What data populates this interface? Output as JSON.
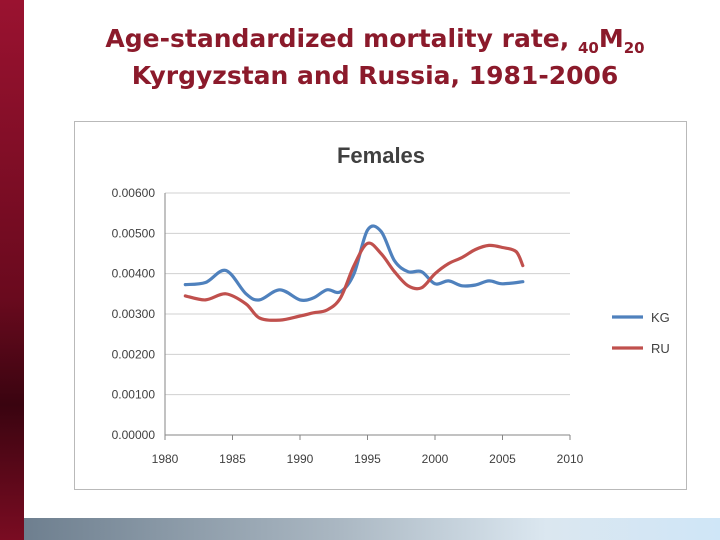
{
  "slide": {
    "title_line1_prefix": "Age-standardized mortality rate, ",
    "title_sub_left": "40",
    "title_m": "M",
    "title_sub_right": "20",
    "title_line2": "Kyrgyzstan and Russia, 1981-2006"
  },
  "colors": {
    "accent": "#8b1a2b",
    "kg": "#4f81bd",
    "ru": "#c0504d"
  },
  "chart_data": {
    "type": "line",
    "title": "Females",
    "xlim": [
      1980,
      2010
    ],
    "ylim": [
      0,
      0.006
    ],
    "x_ticks": [
      1980,
      1985,
      1990,
      1995,
      2000,
      2005,
      2010
    ],
    "y_ticks": [
      "0.00000",
      "0.00100",
      "0.00200",
      "0.00300",
      "0.00400",
      "0.00500",
      "0.00600"
    ],
    "legend_position": "right",
    "grid": true,
    "series": [
      {
        "name": "KG",
        "color": "#4f81bd",
        "x": [
          1981.5,
          1983,
          1984.5,
          1986,
          1987,
          1988.5,
          1990,
          1991,
          1992,
          1993,
          1994,
          1995,
          1996,
          1997,
          1998,
          1999,
          2000,
          2001,
          2002,
          2003,
          2004,
          2005,
          2006.5
        ],
        "y": [
          0.00373,
          0.00378,
          0.00408,
          0.0035,
          0.00335,
          0.0036,
          0.00335,
          0.0034,
          0.0036,
          0.00355,
          0.004,
          0.00508,
          0.00505,
          0.00432,
          0.00405,
          0.00405,
          0.00375,
          0.00382,
          0.0037,
          0.00372,
          0.00382,
          0.00375,
          0.0038
        ]
      },
      {
        "name": "RU",
        "color": "#c0504d",
        "x": [
          1981.5,
          1983,
          1984.5,
          1986,
          1987,
          1988.5,
          1990,
          1991,
          1992,
          1993,
          1994,
          1995,
          1996,
          1997,
          1998,
          1999,
          2000,
          2001,
          2002,
          2003,
          2004,
          2005,
          2006,
          2006.5
        ],
        "y": [
          0.00345,
          0.00335,
          0.0035,
          0.00325,
          0.0029,
          0.00285,
          0.00295,
          0.00303,
          0.0031,
          0.0034,
          0.0042,
          0.00475,
          0.0045,
          0.00405,
          0.0037,
          0.00365,
          0.004,
          0.00425,
          0.0044,
          0.0046,
          0.0047,
          0.00465,
          0.00455,
          0.0042
        ]
      }
    ]
  }
}
